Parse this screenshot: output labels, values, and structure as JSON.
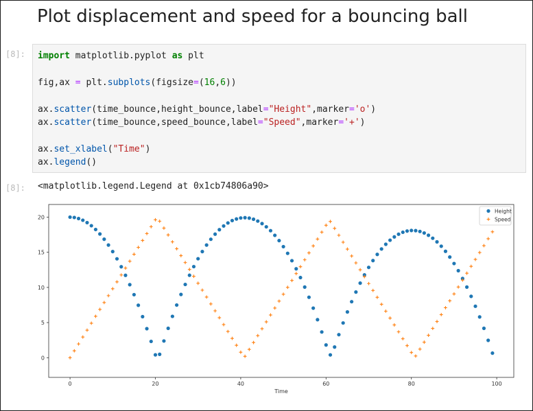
{
  "notebook": {
    "title": "Plot displacement and speed for a bouncing ball",
    "input_prompt": "[8]:",
    "output_prompt": "[8]:",
    "code_lines": [
      [
        {
          "t": "import",
          "c": "kw"
        },
        {
          "t": " matplotlib.pyplot "
        },
        {
          "t": "as",
          "c": "kw"
        },
        {
          "t": " plt"
        }
      ],
      [],
      [
        {
          "t": "fig,ax "
        },
        {
          "t": "=",
          "c": "op"
        },
        {
          "t": " plt."
        },
        {
          "t": "subplots",
          "c": "fn"
        },
        {
          "t": "(figsize"
        },
        {
          "t": "=",
          "c": "op"
        },
        {
          "t": "("
        },
        {
          "t": "16",
          "c": "num"
        },
        {
          "t": ","
        },
        {
          "t": "6",
          "c": "num"
        },
        {
          "t": "))"
        }
      ],
      [],
      [
        {
          "t": "ax."
        },
        {
          "t": "scatter",
          "c": "fn"
        },
        {
          "t": "(time_bounce,height_bounce,label"
        },
        {
          "t": "=",
          "c": "op"
        },
        {
          "t": "\"Height\"",
          "c": "str"
        },
        {
          "t": ",marker"
        },
        {
          "t": "=",
          "c": "op"
        },
        {
          "t": "'o'",
          "c": "str"
        },
        {
          "t": ")"
        }
      ],
      [
        {
          "t": "ax."
        },
        {
          "t": "scatter",
          "c": "fn"
        },
        {
          "t": "(time_bounce,speed_bounce,label"
        },
        {
          "t": "=",
          "c": "op"
        },
        {
          "t": "\"Speed\"",
          "c": "str"
        },
        {
          "t": ",marker"
        },
        {
          "t": "=",
          "c": "op"
        },
        {
          "t": "'+'",
          "c": "str"
        },
        {
          "t": ")"
        }
      ],
      [],
      [
        {
          "t": "ax."
        },
        {
          "t": "set_xlabel",
          "c": "fn"
        },
        {
          "t": "("
        },
        {
          "t": "\"Time\"",
          "c": "str"
        },
        {
          "t": ")"
        }
      ],
      [
        {
          "t": "ax."
        },
        {
          "t": "legend",
          "c": "fn"
        },
        {
          "t": "()"
        }
      ]
    ],
    "output_text": "<matplotlib.legend.Legend at 0x1cb74806a90>"
  },
  "colors": {
    "height": "#1f77b4",
    "speed": "#ff7f0e"
  },
  "chart_data": {
    "type": "scatter",
    "xlabel": "Time",
    "ylabel": "",
    "xlim": [
      -5,
      104
    ],
    "ylim": [
      -2.8,
      21.8
    ],
    "xticks": [
      0,
      20,
      40,
      60,
      80,
      100
    ],
    "yticks": [
      0,
      5,
      10,
      15,
      20
    ],
    "legend": "top-right",
    "grid": false,
    "x": [
      0,
      1,
      2,
      3,
      4,
      5,
      6,
      7,
      8,
      9,
      10,
      11,
      12,
      13,
      14,
      15,
      16,
      17,
      18,
      19,
      20,
      21,
      22,
      23,
      24,
      25,
      26,
      27,
      28,
      29,
      30,
      31,
      32,
      33,
      34,
      35,
      36,
      37,
      38,
      39,
      40,
      41,
      42,
      43,
      44,
      45,
      46,
      47,
      48,
      49,
      50,
      51,
      52,
      53,
      54,
      55,
      56,
      57,
      58,
      59,
      60,
      61,
      62,
      63,
      64,
      65,
      66,
      67,
      68,
      69,
      70,
      71,
      72,
      73,
      74,
      75,
      76,
      77,
      78,
      79,
      80,
      81,
      82,
      83,
      84,
      85,
      86,
      87,
      88,
      89,
      90,
      91,
      92,
      93,
      94,
      95,
      96,
      97,
      98,
      99
    ],
    "series": [
      {
        "name": "Height",
        "marker": "o",
        "values": [
          20,
          19.95,
          19.8,
          19.56,
          19.22,
          18.78,
          18.24,
          17.6,
          16.86,
          16.03,
          15.1,
          14.07,
          12.94,
          11.72,
          10.39,
          8.97,
          7.46,
          5.84,
          4.13,
          2.32,
          0.41,
          0.48,
          2.38,
          4.18,
          5.88,
          7.49,
          9.0,
          10.42,
          11.73,
          12.96,
          14.08,
          15.1,
          16.03,
          16.85,
          17.58,
          18.21,
          18.74,
          19.17,
          19.51,
          19.74,
          19.88,
          19.92,
          19.86,
          19.7,
          19.44,
          19.08,
          18.62,
          18.07,
          17.41,
          16.66,
          15.8,
          14.85,
          13.8,
          12.65,
          11.4,
          10.05,
          8.6,
          7.05,
          5.41,
          3.66,
          1.81,
          0.4,
          1.52,
          3.28,
          4.94,
          6.51,
          7.97,
          9.34,
          10.61,
          11.78,
          12.85,
          13.82,
          14.7,
          15.47,
          16.14,
          16.72,
          17.19,
          17.57,
          17.85,
          18.02,
          18.1,
          18.08,
          17.96,
          17.74,
          17.42,
          17.0,
          16.48,
          15.86,
          15.14,
          14.32,
          13.4,
          12.38,
          11.27,
          10.05,
          8.73,
          7.32,
          5.8,
          4.18,
          2.47,
          0.65
        ]
      },
      {
        "name": "Speed",
        "marker": "+",
        "values": [
          0,
          0.98,
          1.96,
          2.94,
          3.92,
          4.91,
          5.89,
          6.87,
          7.85,
          8.83,
          9.81,
          10.79,
          11.77,
          12.75,
          13.73,
          14.72,
          15.7,
          16.68,
          17.66,
          18.64,
          19.62,
          19.42,
          18.44,
          17.46,
          16.48,
          15.5,
          14.52,
          13.54,
          12.56,
          11.58,
          10.59,
          9.61,
          8.63,
          7.65,
          6.67,
          5.69,
          4.71,
          3.73,
          2.75,
          1.77,
          0.78,
          0.2,
          1.18,
          2.16,
          3.14,
          4.12,
          5.1,
          6.08,
          7.07,
          8.05,
          9.03,
          10.01,
          10.99,
          11.97,
          12.95,
          13.93,
          14.91,
          15.9,
          16.88,
          17.86,
          18.84,
          19.38,
          18.4,
          17.42,
          16.43,
          15.45,
          14.47,
          13.49,
          12.51,
          11.53,
          10.55,
          9.57,
          8.59,
          7.6,
          6.62,
          5.64,
          4.66,
          3.68,
          2.7,
          1.72,
          0.74,
          0.24,
          1.22,
          2.21,
          3.19,
          4.17,
          5.15,
          6.13,
          7.11,
          8.09,
          9.07,
          10.06,
          11.04,
          12.02,
          13.0,
          13.98,
          14.96,
          15.94,
          16.93,
          17.91
        ]
      }
    ]
  }
}
